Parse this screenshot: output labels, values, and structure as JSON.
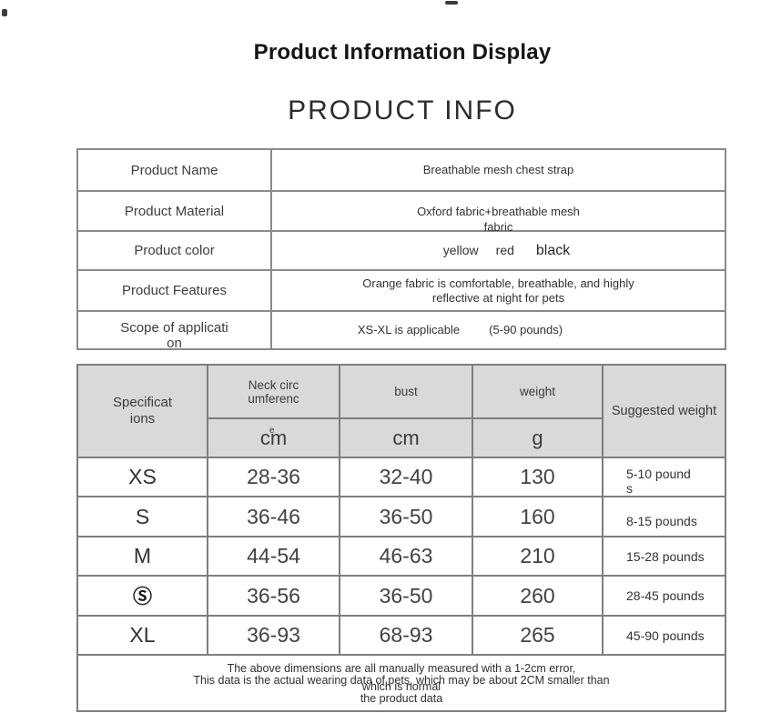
{
  "page": {
    "title": "Product Information Display",
    "subtitle": "PRODUCT INFO"
  },
  "info_table": {
    "rows": [
      {
        "label": "Product Name",
        "value": "Breathable mesh chest strap"
      },
      {
        "label": "Product Material",
        "value_line1": "Oxford fabric+breathable mesh",
        "value_line2": "fabric"
      },
      {
        "label": "Product color",
        "colors": [
          "yellow",
          "red",
          "black"
        ]
      },
      {
        "label": "Product Features",
        "value_line1": "Orange fabric is comfortable, breathable, and highly",
        "value_line2": "reflective at night for pets"
      },
      {
        "label_line1": "Scope of applicati",
        "label_line2": "on",
        "value1": "XS-XL is applicable",
        "value2": "(5-90 pounds)"
      }
    ]
  },
  "size_table": {
    "header": {
      "col1_line1": "Specificat",
      "col1_line2": "ions",
      "neck_line1": "Neck circ",
      "neck_line2": "umferenc",
      "neck_unit": "cm",
      "neck_unit_overlay": "e",
      "bust_name": "bust",
      "bust_unit": "cm",
      "weight_name": "weight",
      "weight_unit": "g",
      "col5": "Suggested weight"
    },
    "rows": [
      {
        "size": "XS",
        "neck": "28-36",
        "bust": "32-40",
        "weight": "130",
        "suggested_line1": "5-10 pound",
        "suggested_line2": "s"
      },
      {
        "size": "S",
        "neck": "36-46",
        "bust": "36-50",
        "weight": "160",
        "suggested": "8-15 pounds"
      },
      {
        "size": "M",
        "neck": "44-54",
        "bust": "46-63",
        "weight": "210",
        "suggested": "15-28 pounds"
      },
      {
        "size": "Ⓢ",
        "neck": "36-56",
        "bust": "36-50",
        "weight": "260",
        "suggested": "28-45 pounds"
      },
      {
        "size": "XL",
        "neck": "36-93",
        "bust": "68-93",
        "weight": "265",
        "suggested": "45-90 pounds"
      }
    ],
    "note_lines": [
      "The above dimensions are all manually measured with a 1-2cm error,",
      "This data is the actual wearing data of pets, which may be about 2CM smaller than",
      "which is normal",
      "the product data"
    ]
  },
  "colors": {
    "header_bg": "#d9d9d9",
    "border": "#7e7e7e",
    "text": "#3b3b3b"
  }
}
